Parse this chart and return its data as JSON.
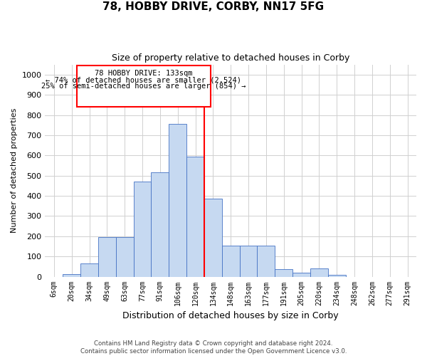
{
  "title": "78, HOBBY DRIVE, CORBY, NN17 5FG",
  "subtitle": "Size of property relative to detached houses in Corby",
  "xlabel": "Distribution of detached houses by size in Corby",
  "ylabel": "Number of detached properties",
  "categories": [
    "6sqm",
    "20sqm",
    "34sqm",
    "49sqm",
    "63sqm",
    "77sqm",
    "91sqm",
    "106sqm",
    "120sqm",
    "134sqm",
    "148sqm",
    "163sqm",
    "177sqm",
    "191sqm",
    "205sqm",
    "220sqm",
    "234sqm",
    "248sqm",
    "262sqm",
    "277sqm",
    "291sqm"
  ],
  "values": [
    0,
    13,
    65,
    195,
    195,
    470,
    515,
    755,
    595,
    385,
    155,
    155,
    155,
    38,
    20,
    40,
    10,
    0,
    0,
    0,
    0
  ],
  "bar_color": "#c6d9f1",
  "bar_edge_color": "#4472c4",
  "property_line_label": "78 HOBBY DRIVE: 133sqm",
  "annotation_line1": "← 74% of detached houses are smaller (2,524)",
  "annotation_line2": "25% of semi-detached houses are larger (854) →",
  "ylim": [
    0,
    1050
  ],
  "yticks": [
    0,
    100,
    200,
    300,
    400,
    500,
    600,
    700,
    800,
    900,
    1000
  ],
  "grid_color": "#d0d0d0",
  "background_color": "#ffffff",
  "footer_line1": "Contains HM Land Registry data © Crown copyright and database right 2024.",
  "footer_line2": "Contains public sector information licensed under the Open Government Licence v3.0.",
  "prop_bar_index": 8.5
}
